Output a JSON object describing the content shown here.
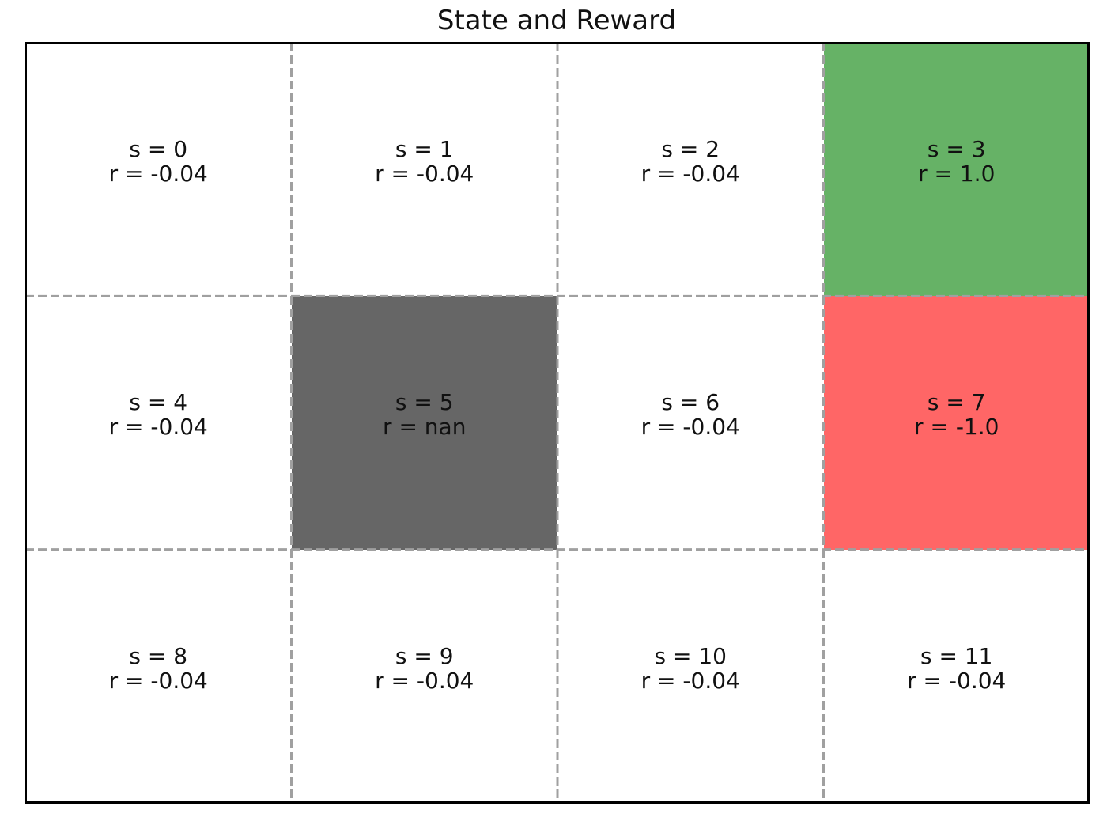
{
  "title": "State and Reward",
  "grid": {
    "rows": 3,
    "cols": 4,
    "cells": [
      {
        "state": "s = 0",
        "reward": "r = -0.04",
        "color": "#ffffff"
      },
      {
        "state": "s = 1",
        "reward": "r = -0.04",
        "color": "#ffffff"
      },
      {
        "state": "s = 2",
        "reward": "r = -0.04",
        "color": "#ffffff"
      },
      {
        "state": "s = 3",
        "reward": "r = 1.0",
        "color": "#66b266"
      },
      {
        "state": "s = 4",
        "reward": "r = -0.04",
        "color": "#ffffff"
      },
      {
        "state": "s = 5",
        "reward": "r = nan",
        "color": "#666666"
      },
      {
        "state": "s = 6",
        "reward": "r = -0.04",
        "color": "#ffffff"
      },
      {
        "state": "s = 7",
        "reward": "r = -1.0",
        "color": "#ff6666"
      },
      {
        "state": "s = 8",
        "reward": "r = -0.04",
        "color": "#ffffff"
      },
      {
        "state": "s = 9",
        "reward": "r = -0.04",
        "color": "#ffffff"
      },
      {
        "state": "s = 10",
        "reward": "r = -0.04",
        "color": "#ffffff"
      },
      {
        "state": "s = 11",
        "reward": "r = -0.04",
        "color": "#ffffff"
      }
    ]
  },
  "colors": {
    "grid_line": "#a0a0a0",
    "frame": "#000000"
  }
}
